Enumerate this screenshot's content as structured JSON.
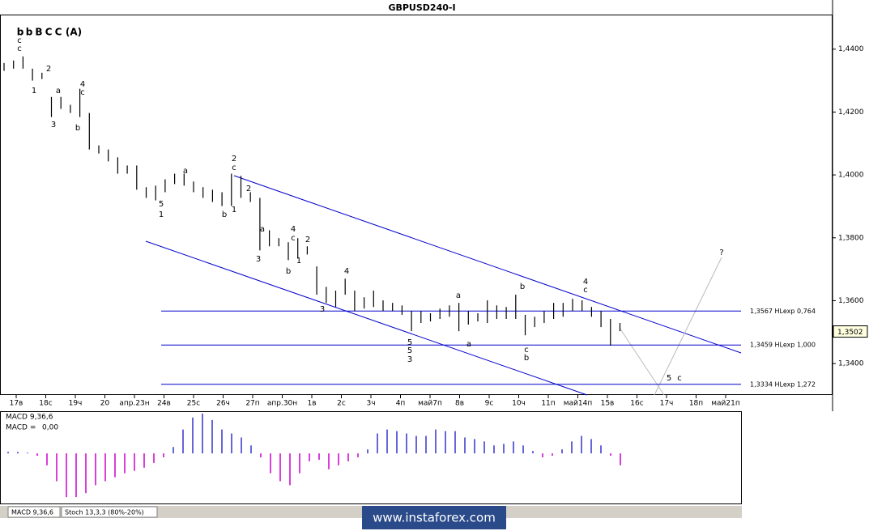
{
  "chart_data": {
    "type": "ohlc",
    "title": "GBPUSD240-I",
    "legend_waves": [
      {
        "text": "b",
        "color": "#00007f"
      },
      {
        "text": "b",
        "color": "#3399ff"
      },
      {
        "text": "B",
        "color": "#0000ff"
      },
      {
        "text": "C",
        "color": "#009999"
      },
      {
        "text": "C",
        "color": "#990000"
      },
      {
        "text": "(A)",
        "color": "#cc0000"
      }
    ],
    "x_labels": [
      "17в",
      "18с",
      "19ч",
      "20",
      "апр.23н",
      "24в",
      "25с",
      "26ч",
      "27п",
      "апр.30н",
      "1в",
      "2с",
      "3ч",
      "4п",
      "май7п",
      "8в",
      "9с",
      "10ч",
      "11п",
      "май14п",
      "15в",
      "16с",
      "17ч",
      "18п",
      "май21п"
    ],
    "high": [
      1.4356,
      1.4364,
      1.4377,
      1.4338,
      1.4325,
      1.4248,
      1.4248,
      1.4223,
      1.4274,
      1.4197,
      1.4094,
      1.4081,
      1.4056,
      1.403,
      1.403,
      1.3961,
      1.3966,
      1.3986,
      1.4004,
      1.4004,
      1.3979,
      1.3961,
      1.3953,
      1.3945,
      1.4004,
      1.3997,
      1.3945,
      1.3927,
      1.3824,
      1.3799,
      1.3786,
      1.3799,
      1.3773,
      1.3709,
      1.3644,
      1.3632,
      1.367,
      1.3632,
      1.3611,
      1.3632,
      1.3601,
      1.3593,
      1.3585,
      1.3567,
      1.3567,
      1.356,
      1.3575,
      1.3585,
      1.3593,
      1.3567,
      1.356,
      1.3601,
      1.3585,
      1.358,
      1.3619,
      1.3555,
      1.3549,
      1.3567,
      1.3593,
      1.3593,
      1.3606,
      1.3601,
      1.358,
      1.3567,
      1.3542,
      1.3529
    ],
    "low": [
      1.4331,
      1.4338,
      1.4338,
      1.43,
      1.4305,
      1.4184,
      1.421,
      1.4197,
      1.4184,
      1.4081,
      1.4068,
      1.4043,
      1.4004,
      1.4004,
      1.3953,
      1.3927,
      1.3919,
      1.3945,
      1.3971,
      1.3966,
      1.3945,
      1.3927,
      1.3914,
      1.3901,
      1.3901,
      1.3927,
      1.3914,
      1.376,
      1.3773,
      1.3773,
      1.3729,
      1.3734,
      1.3747,
      1.3619,
      1.3593,
      1.358,
      1.3619,
      1.3567,
      1.3575,
      1.358,
      1.3567,
      1.3567,
      1.3555,
      1.3503,
      1.3529,
      1.3534,
      1.3542,
      1.3549,
      1.3503,
      1.3524,
      1.3534,
      1.3529,
      1.3542,
      1.3542,
      1.3542,
      1.349,
      1.3516,
      1.3529,
      1.3542,
      1.3549,
      1.3567,
      1.3567,
      1.3549,
      1.3516,
      1.3457,
      1.3503
    ],
    "color": "#000000",
    "ylim": [
      1.33,
      1.451
    ],
    "yticks": [
      {
        "value": 1.44,
        "label": "1,4400"
      },
      {
        "value": 1.42,
        "label": "1,4200"
      },
      {
        "value": 1.4,
        "label": "1,4000"
      },
      {
        "value": 1.38,
        "label": "1,3800"
      },
      {
        "value": 1.36,
        "label": "1,3600"
      },
      {
        "value": 1.34,
        "label": "1,3400"
      }
    ],
    "price": {
      "value": 1.3502,
      "label": "1,3502"
    },
    "levels": [
      {
        "value": 1.3567,
        "label": "1,3567 HLexp 0,764"
      },
      {
        "value": 1.3459,
        "label": "1,3459 HLexp 1,000"
      },
      {
        "value": 1.3334,
        "label": "1,3334 HLexp 1,272"
      }
    ],
    "level_color": "#0000cc",
    "annotations": [
      {
        "text": "c",
        "color": "#000000"
      },
      {
        "text": "c",
        "color": "#0000cc"
      },
      {
        "text": "2",
        "color": "#000000"
      },
      {
        "text": "1",
        "color": "#000000"
      },
      {
        "text": "a",
        "color": "#800000"
      },
      {
        "text": "3",
        "color": "#000000"
      },
      {
        "text": "4",
        "color": "#800000"
      },
      {
        "text": "c",
        "color": "#800000"
      },
      {
        "text": "b",
        "color": "#800000"
      },
      {
        "text": "a",
        "color": "#000000"
      },
      {
        "text": "5",
        "color": "#800000"
      },
      {
        "text": "1",
        "color": "#0000cc"
      },
      {
        "text": "b",
        "color": "#000000"
      },
      {
        "text": "1",
        "color": "#000000"
      },
      {
        "text": "2",
        "color": "#0000cc"
      },
      {
        "text": "c",
        "color": "#000000"
      },
      {
        "text": "2",
        "color": "#000000"
      },
      {
        "text": "a",
        "color": "#800000"
      },
      {
        "text": "3",
        "color": "#000000"
      },
      {
        "text": "4",
        "color": "#000000"
      },
      {
        "text": "c",
        "color": "#800000"
      },
      {
        "text": "2",
        "color": "#800000"
      },
      {
        "text": "1",
        "color": "#800000"
      },
      {
        "text": "b",
        "color": "#800000"
      },
      {
        "text": "4",
        "color": "#800000"
      },
      {
        "text": "3",
        "color": "#800000"
      },
      {
        "text": "a",
        "color": "#000000"
      },
      {
        "text": "a",
        "color": "#800000"
      },
      {
        "text": "5",
        "color": "#800000"
      },
      {
        "text": "5",
        "color": "#000000"
      },
      {
        "text": "3",
        "color": "#0000cc"
      },
      {
        "text": "b",
        "color": "#800000"
      },
      {
        "text": "c",
        "color": "#000000"
      },
      {
        "text": "b",
        "color": "#000000"
      },
      {
        "text": "4",
        "color": "#0000cc"
      },
      {
        "text": "c",
        "color": "#000000"
      },
      {
        "text": "5",
        "color": "#0000cc"
      },
      {
        "text": "c",
        "color": "#0000cc"
      },
      {
        "text": "?",
        "color": "#333333"
      }
    ],
    "macd": {
      "title": "MACD 9,36,6",
      "readout": "MACD =",
      "readout_value": "0,00",
      "positive_color": "#3333cc",
      "negative_color": "#cc00cc",
      "ylim": [
        -0.0063,
        0.0052
      ],
      "values": [
        0.0002,
        0.0002,
        0.0001,
        -0.0003,
        -0.0015,
        -0.0035,
        -0.0055,
        -0.0055,
        -0.005,
        -0.004,
        -0.0035,
        -0.003,
        -0.0025,
        -0.0022,
        -0.0018,
        -0.0012,
        -0.0005,
        0.0008,
        0.003,
        0.0045,
        0.005,
        0.0042,
        0.003,
        0.0025,
        0.002,
        0.001,
        -0.0005,
        -0.0025,
        -0.0035,
        -0.004,
        -0.0025,
        -0.001,
        -0.0008,
        -0.002,
        -0.0015,
        -0.001,
        -0.0005,
        0.0005,
        0.0025,
        0.003,
        0.0028,
        0.0025,
        0.0022,
        0.0022,
        0.003,
        0.0028,
        0.0028,
        0.002,
        0.0018,
        0.0015,
        0.001,
        0.0012,
        0.0015,
        0.001,
        0.0003,
        -0.0005,
        -0.0003,
        0.0005,
        0.0015,
        0.0022,
        0.0018,
        0.001,
        -0.0003,
        -0.0015
      ]
    }
  },
  "tabs": [
    "MACD 9,36,6",
    "Stoch 13,3,3 (80%-20%)"
  ],
  "watermark": "www.instaforex.com"
}
